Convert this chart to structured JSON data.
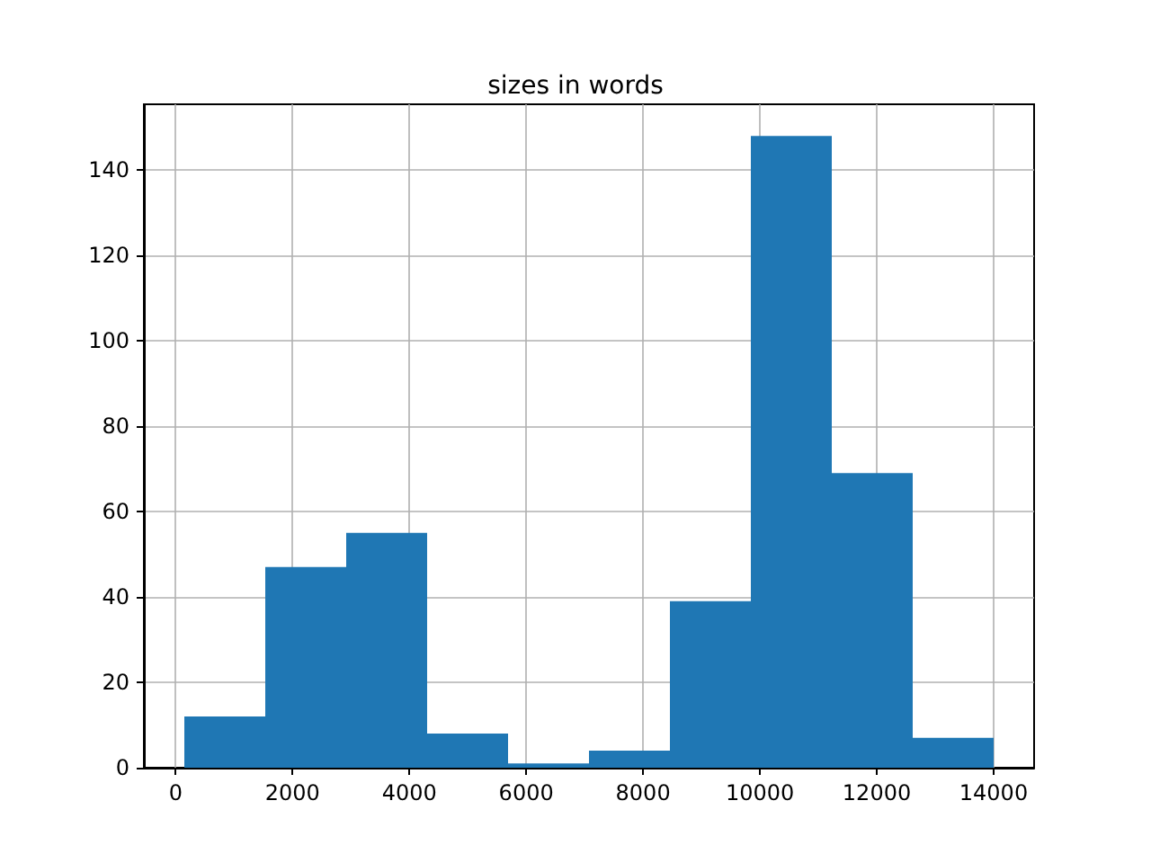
{
  "chart_data": {
    "type": "histogram",
    "title": "sizes in words",
    "bins": [
      150,
      1535,
      2920,
      4305,
      5690,
      7075,
      8460,
      9845,
      11230,
      12615,
      14000
    ],
    "values": [
      12,
      47,
      55,
      8,
      1,
      4,
      39,
      148,
      69,
      7
    ],
    "color": "#1f77b4",
    "xlim": [
      -542.5,
      14692.5
    ],
    "xticks": [
      0,
      2000,
      4000,
      6000,
      8000,
      10000,
      12000,
      14000
    ],
    "ylim": [
      0,
      155.4
    ],
    "yticks": [
      0,
      20,
      40,
      60,
      80,
      100,
      120,
      140
    ],
    "grid": true
  }
}
